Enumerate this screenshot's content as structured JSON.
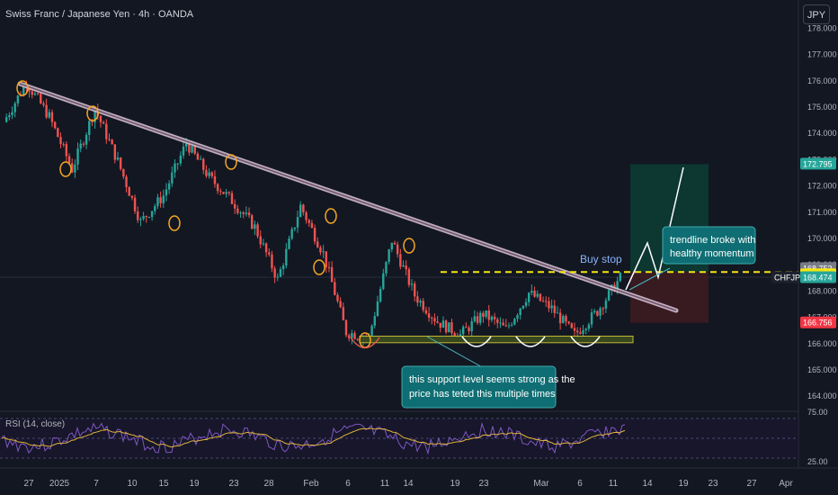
{
  "header": {
    "title": "Swiss Franc / Japanese Yen · 4h · OANDA",
    "currency_button": "JPY"
  },
  "colors": {
    "background": "#131722",
    "up": "#26a69a",
    "down": "#ef5350",
    "trendline": "#d9c7d6",
    "buy_stop_line": "#f5e50f",
    "support_zone": "#3a4a1e",
    "annotation_box": "#0f6e73",
    "marker": "#f5a623",
    "rsi_line": "#7e57c2",
    "rsi_ma": "#e0b33a"
  },
  "chart_data": {
    "type": "candlestick",
    "symbol": "CHFJPY",
    "interval": "4h",
    "y_axis": {
      "range": [
        163.4,
        178.3
      ],
      "ticks": [
        "178.000",
        "177.000",
        "176.000",
        "175.000",
        "174.000",
        "173.000",
        "172.000",
        "171.000",
        "170.000",
        "169.000",
        "168.000",
        "167.000",
        "166.000",
        "165.000",
        "164.000"
      ]
    },
    "x_axis_ticks": [
      "27",
      "2025",
      "7",
      "10",
      "15",
      "19",
      "23",
      "28",
      "Feb",
      "6",
      "11",
      "14",
      "19",
      "23",
      "Mar",
      "6",
      "11",
      "14",
      "19",
      "23",
      "27",
      "Apr"
    ],
    "price_path": [
      [
        0,
        174.4
      ],
      [
        2,
        175.9
      ],
      [
        4,
        174.6
      ],
      [
        6,
        172.6
      ],
      [
        8,
        174.9
      ],
      [
        10,
        172.9
      ],
      [
        12,
        170.6
      ],
      [
        14,
        171.6
      ],
      [
        16,
        173.6
      ],
      [
        18,
        172.3
      ],
      [
        20,
        171.4
      ],
      [
        22,
        170.4
      ],
      [
        24,
        168.4
      ],
      [
        26,
        171.2
      ],
      [
        28,
        169.4
      ],
      [
        30,
        166.4
      ],
      [
        32,
        166.2
      ],
      [
        34,
        169.9
      ],
      [
        36,
        167.8
      ],
      [
        38,
        166.8
      ],
      [
        40,
        166.3
      ],
      [
        42,
        167.1
      ],
      [
        44,
        166.5
      ],
      [
        46,
        167.9
      ],
      [
        48,
        167.3
      ],
      [
        50,
        166.3
      ],
      [
        52,
        167.2
      ],
      [
        54,
        168.47
      ]
    ],
    "price_labels": [
      {
        "text": "172.795",
        "value": 172.795,
        "color": "#26a69a"
      },
      {
        "text": "168.753",
        "value": 168.753,
        "color": "#787b86"
      },
      {
        "text": "168.688",
        "value": 168.688,
        "color": "#f5e50f"
      },
      {
        "text": "CHFJPY",
        "value": 168.474,
        "color": "#ffffff"
      },
      {
        "text": "168.474",
        "value": 168.474,
        "color": "#26a69a"
      },
      {
        "text": "166.756",
        "value": 166.756,
        "color": "#f23645"
      }
    ],
    "buy_stop_level": 168.688,
    "target": 172.795,
    "stop_loss": 166.756,
    "support_zone": [
      166.0,
      166.25
    ],
    "rsi": {
      "label": "RSI (14, close)",
      "ticks": [
        "75.00",
        "25.00"
      ]
    },
    "annotations": {
      "buy_stop": "Buy stop",
      "trendline_note": "trendline broke with healthy momentum",
      "support_note": "this support level seems strong as the price has teted this multiple times"
    }
  }
}
